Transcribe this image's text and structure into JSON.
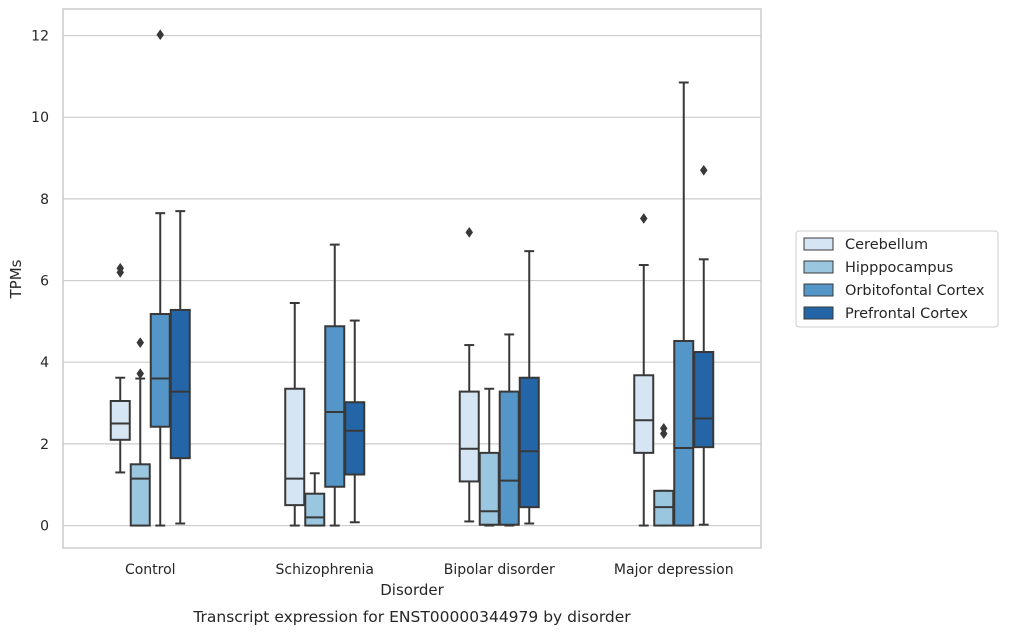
{
  "chart_data": {
    "type": "box",
    "xlabel": "Disorder",
    "ylabel": "TPMs",
    "caption": "Transcript expression for ENST00000344979 by disorder",
    "ylim": [
      -0.55,
      12.65
    ],
    "yticks": [
      0,
      2,
      4,
      6,
      8,
      10,
      12
    ],
    "grid": "horizontal",
    "legend_position": "right",
    "categories": [
      "Control",
      "Schizophrenia",
      "Bipolar disorder",
      "Major depression"
    ],
    "series": [
      {
        "name": "Cerebellum",
        "color": "#d6e5f3",
        "boxes": [
          {
            "whisker_low": 1.3,
            "q1": 2.1,
            "median": 2.5,
            "q3": 3.05,
            "whisker_high": 3.62,
            "outliers": [
              6.2,
              6.3
            ]
          },
          {
            "whisker_low": 0.0,
            "q1": 0.5,
            "median": 1.15,
            "q3": 3.35,
            "whisker_high": 5.45,
            "outliers": []
          },
          {
            "whisker_low": 0.1,
            "q1": 1.08,
            "median": 1.88,
            "q3": 3.28,
            "whisker_high": 4.42,
            "outliers": [
              7.18
            ]
          },
          {
            "whisker_low": 0.0,
            "q1": 1.78,
            "median": 2.58,
            "q3": 3.68,
            "whisker_high": 6.38,
            "outliers": [
              7.52
            ]
          }
        ]
      },
      {
        "name": "Hipppocampus",
        "color": "#9ac6df",
        "boxes": [
          {
            "whisker_low": 0.0,
            "q1": 0.0,
            "median": 1.15,
            "q3": 1.5,
            "whisker_high": 3.6,
            "outliers": [
              3.72,
              4.48
            ]
          },
          {
            "whisker_low": 0.0,
            "q1": 0.0,
            "median": 0.2,
            "q3": 0.78,
            "whisker_high": 1.28,
            "outliers": []
          },
          {
            "whisker_low": 0.0,
            "q1": 0.02,
            "median": 0.35,
            "q3": 1.78,
            "whisker_high": 3.35,
            "outliers": []
          },
          {
            "whisker_low": 0.0,
            "q1": 0.0,
            "median": 0.45,
            "q3": 0.85,
            "whisker_high": 0.85,
            "outliers": [
              2.25,
              2.38
            ]
          }
        ]
      },
      {
        "name": "Orbitofontal Cortex",
        "color": "#5496c8",
        "boxes": [
          {
            "whisker_low": 0.0,
            "q1": 2.42,
            "median": 3.6,
            "q3": 5.18,
            "whisker_high": 7.65,
            "outliers": [
              12.02
            ]
          },
          {
            "whisker_low": 0.0,
            "q1": 0.95,
            "median": 2.78,
            "q3": 4.88,
            "whisker_high": 6.88,
            "outliers": []
          },
          {
            "whisker_low": 0.0,
            "q1": 0.02,
            "median": 1.1,
            "q3": 3.28,
            "whisker_high": 4.68,
            "outliers": []
          },
          {
            "whisker_low": 0.0,
            "q1": 0.0,
            "median": 1.9,
            "q3": 4.52,
            "whisker_high": 10.85,
            "outliers": []
          }
        ]
      },
      {
        "name": "Prefrontal Cortex",
        "color": "#2465a8",
        "boxes": [
          {
            "whisker_low": 0.05,
            "q1": 1.65,
            "median": 3.28,
            "q3": 5.28,
            "whisker_high": 7.7,
            "outliers": []
          },
          {
            "whisker_low": 0.08,
            "q1": 1.25,
            "median": 2.32,
            "q3": 3.02,
            "whisker_high": 5.02,
            "outliers": []
          },
          {
            "whisker_low": 0.05,
            "q1": 0.45,
            "median": 1.82,
            "q3": 3.62,
            "whisker_high": 6.72,
            "outliers": []
          },
          {
            "whisker_low": 0.02,
            "q1": 1.92,
            "median": 2.62,
            "q3": 4.25,
            "whisker_high": 6.52,
            "outliers": [
              8.7
            ]
          }
        ]
      }
    ]
  },
  "colors": {
    "edge": "#383838",
    "grid": "#cccccc",
    "frame": "#cccccc"
  }
}
